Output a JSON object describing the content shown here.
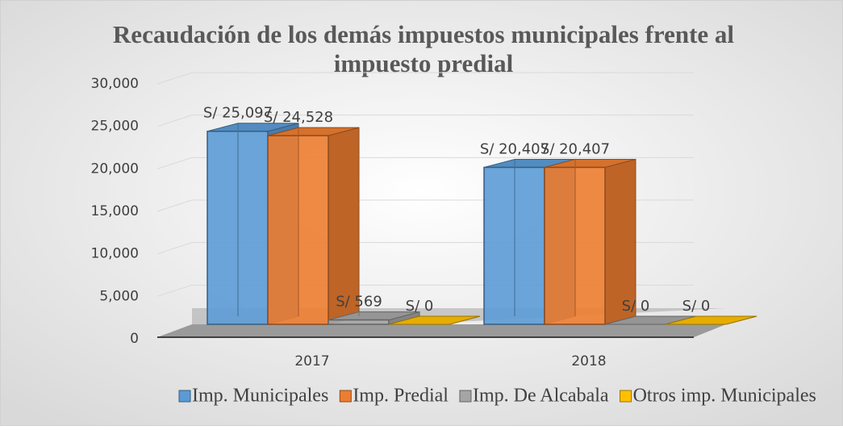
{
  "chart_data": {
    "type": "bar3d",
    "title": "Recaudación de los demás impuestos municipales frente al impuesto predial",
    "categories": [
      "2017",
      "2018"
    ],
    "series": [
      {
        "name": "Imp. Municipales",
        "color": "#5b9bd5",
        "values": [
          25097,
          20407
        ],
        "value_labels": [
          "S/ 25,097",
          "S/ 20,407"
        ]
      },
      {
        "name": "Imp. Predial",
        "color": "#ed7d31",
        "values": [
          24528,
          20407
        ],
        "value_labels": [
          "S/ 24,528",
          "S/ 20,407"
        ]
      },
      {
        "name": "Imp. De Alcabala",
        "color": "#a5a5a5",
        "values": [
          569,
          0
        ],
        "value_labels": [
          "S/ 569",
          "S/ 0"
        ]
      },
      {
        "name": "Otros imp. Municipales",
        "color": "#ffc000",
        "values": [
          0,
          0
        ],
        "value_labels": [
          "S/ 0",
          "S/ 0"
        ]
      }
    ],
    "ylim": [
      0,
      30000
    ],
    "yticks": [
      0,
      {
        "value": 5000,
        "label": "5,000"
      },
      {
        "value": 10000,
        "label": "10,000"
      },
      {
        "value": 15000,
        "label": "15,000"
      },
      {
        "value": 20000,
        "label": "20,000"
      },
      {
        "value": 25000,
        "label": "25,000"
      },
      {
        "value": 30000,
        "label": "30,000"
      }
    ],
    "grid": true,
    "legend": "bottom"
  }
}
